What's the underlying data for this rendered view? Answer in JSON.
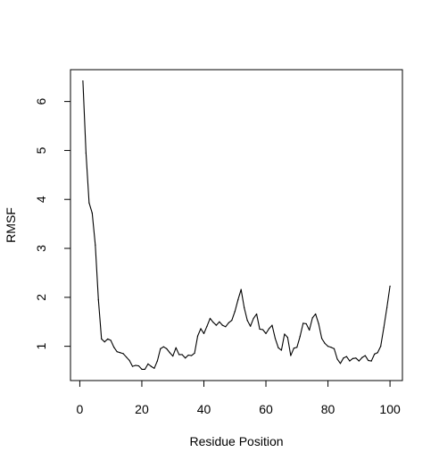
{
  "chart_data": {
    "type": "line",
    "title": "",
    "xlabel": "Residue Position",
    "ylabel": "RMSF",
    "xlim": [
      -3,
      104
    ],
    "ylim": [
      0.3,
      6.65
    ],
    "xticks": [
      0,
      20,
      40,
      60,
      80,
      100
    ],
    "yticks": [
      1,
      2,
      3,
      4,
      5,
      6
    ],
    "grid": false,
    "legend": "none",
    "line_color": "#000000",
    "series": [
      {
        "x": [
          1,
          2,
          3,
          4,
          5,
          6,
          7,
          8,
          9,
          10,
          11,
          12,
          13,
          14,
          15,
          16,
          17,
          18,
          19,
          20,
          21,
          22,
          23,
          24,
          25,
          26,
          27,
          28,
          29,
          30,
          31,
          32,
          33,
          34,
          35,
          36,
          37,
          38,
          39,
          40,
          41,
          42,
          43,
          44,
          45,
          46,
          47,
          48,
          49,
          50,
          51,
          52,
          53,
          54,
          55,
          56,
          57,
          58,
          59,
          60,
          61,
          62,
          63,
          64,
          65,
          66,
          67,
          68,
          69,
          70,
          71,
          72,
          73,
          74,
          75,
          76,
          77,
          78,
          79,
          80,
          81,
          82,
          83,
          84,
          85,
          86,
          87,
          88,
          89,
          90,
          91,
          92,
          93,
          94,
          95,
          96,
          97,
          98,
          99,
          100
        ],
        "values": [
          6.42,
          4.95,
          3.93,
          3.72,
          3.07,
          1.95,
          1.15,
          1.09,
          1.15,
          1.12,
          0.98,
          0.89,
          0.87,
          0.85,
          0.78,
          0.71,
          0.59,
          0.61,
          0.6,
          0.53,
          0.53,
          0.64,
          0.59,
          0.55,
          0.7,
          0.95,
          0.99,
          0.95,
          0.87,
          0.8,
          0.97,
          0.83,
          0.83,
          0.76,
          0.82,
          0.81,
          0.86,
          1.21,
          1.36,
          1.26,
          1.41,
          1.57,
          1.49,
          1.43,
          1.5,
          1.43,
          1.4,
          1.48,
          1.53,
          1.71,
          1.95,
          2.16,
          1.79,
          1.53,
          1.41,
          1.57,
          1.66,
          1.35,
          1.34,
          1.26,
          1.36,
          1.43,
          1.16,
          0.97,
          0.92,
          1.25,
          1.18,
          0.81,
          0.96,
          0.98,
          1.2,
          1.47,
          1.46,
          1.33,
          1.58,
          1.66,
          1.46,
          1.16,
          1.06,
          1.0,
          0.98,
          0.95,
          0.74,
          0.65,
          0.76,
          0.79,
          0.7,
          0.75,
          0.76,
          0.7,
          0.77,
          0.81,
          0.71,
          0.7,
          0.84,
          0.87,
          1.0,
          1.38,
          1.79,
          2.23
        ]
      }
    ]
  }
}
